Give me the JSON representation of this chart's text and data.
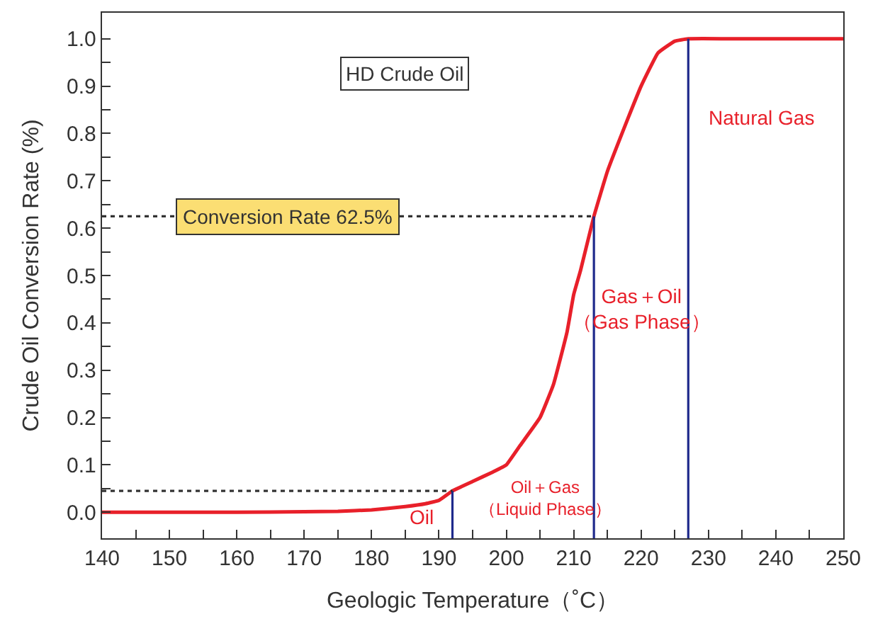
{
  "chart_data": {
    "type": "line",
    "xlabel": "Geologic Temperature（˚C）",
    "ylabel": "Crude Oil Conversion Rate (%)",
    "xlim": [
      140,
      250
    ],
    "ylim": [
      -0.055,
      1.055
    ],
    "xticks": [
      140,
      {
        "value": 145,
        "label": null
      },
      150,
      {
        "value": 155,
        "label": null
      },
      160,
      {
        "value": 165,
        "label": null
      },
      170,
      {
        "value": 175,
        "label": null
      },
      180,
      {
        "value": 185,
        "label": null
      },
      190,
      {
        "value": 195,
        "label": null
      },
      200,
      {
        "value": 205,
        "label": null
      },
      210,
      {
        "value": 215,
        "label": null
      },
      220,
      {
        "value": 225,
        "label": null
      },
      230,
      {
        "value": 235,
        "label": null
      },
      240,
      {
        "value": 245,
        "label": null
      },
      250
    ],
    "yticks": [
      {
        "value": 0,
        "label": "0.0"
      },
      {
        "value": 0.05,
        "label": null
      },
      0.1,
      {
        "value": 0.15,
        "label": null
      },
      0.2,
      {
        "value": 0.25,
        "label": null
      },
      0.3,
      {
        "value": 0.35,
        "label": null
      },
      0.4,
      {
        "value": 0.45,
        "label": null
      },
      0.5,
      {
        "value": 0.55,
        "label": null
      },
      0.6,
      {
        "value": 0.65,
        "label": null
      },
      0.7,
      {
        "value": 0.75,
        "label": null
      },
      0.8,
      {
        "value": 0.85,
        "label": null
      },
      0.9,
      {
        "value": 0.95,
        "label": null
      },
      {
        "value": 1,
        "label": "1.0"
      }
    ],
    "marker": "none",
    "series": [
      {
        "color": "#e8202a",
        "line_style": "solid",
        "x": [
          140,
          150,
          160,
          170,
          175,
          180,
          185,
          188,
          190,
          192,
          195,
          198,
          200,
          202,
          205,
          207,
          209,
          210,
          211,
          213,
          215,
          218,
          220,
          222.5,
          225,
          227,
          235,
          250
        ],
        "values": [
          0,
          0,
          0,
          0.001,
          0.002,
          0.005,
          0.012,
          0.018,
          0.025,
          0.045,
          0.065,
          0.085,
          0.1,
          0.14,
          0.2,
          0.27,
          0.38,
          0.46,
          0.51,
          0.625,
          0.72,
          0.83,
          0.9,
          0.97,
          0.995,
          1.0,
          1.0,
          1.0
        ]
      },
      {
        "color": "#1f2a8c",
        "line_style": "solid",
        "x": [
          192,
          192
        ],
        "values": [
          -0.055,
          0.045
        ]
      },
      {
        "color": "#1f2a8c",
        "line_style": "solid",
        "x": [
          213,
          213
        ],
        "values": [
          -0.055,
          0.625
        ]
      },
      {
        "color": "#1f2a8c",
        "line_style": "solid",
        "x": [
          227,
          227
        ],
        "values": [
          -0.055,
          1.0
        ]
      },
      {
        "color": "#333333",
        "line_style": "dotted",
        "x": [
          140,
          192
        ],
        "values": [
          0.045,
          0.045
        ]
      },
      {
        "color": "#333333",
        "line_style": "dotted",
        "x": [
          140,
          213
        ],
        "values": [
          0.625,
          0.625
        ]
      }
    ],
    "annotations": [
      "HD Crude Oil",
      "Conversion Rate 62.5%",
      "Natural Gas",
      "Gas＋Oil\n（Gas Phase）",
      "Oil＋Gas\n（Liquid Phase）",
      "Oil"
    ]
  }
}
